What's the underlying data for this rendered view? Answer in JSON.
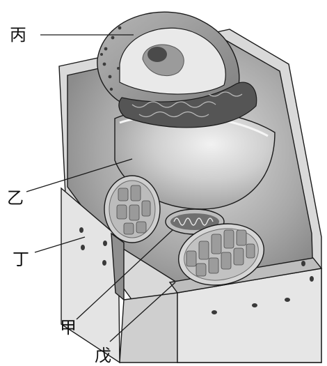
{
  "labels": {
    "bing": "丙",
    "yi": "乙",
    "ding": "丁",
    "jia": "甲",
    "wu": "戊"
  },
  "colors": {
    "line": "#1a1a1a",
    "wall_light": "#e3e3e3",
    "wall_mid": "#bfbfbf",
    "wall_dark": "#8f8f8f",
    "cytoplasm": "#a9a9a9",
    "vacuole": "#d2d2d2",
    "nucleus_shell": "#9a9a9a",
    "er": "#4f4f4f"
  }
}
